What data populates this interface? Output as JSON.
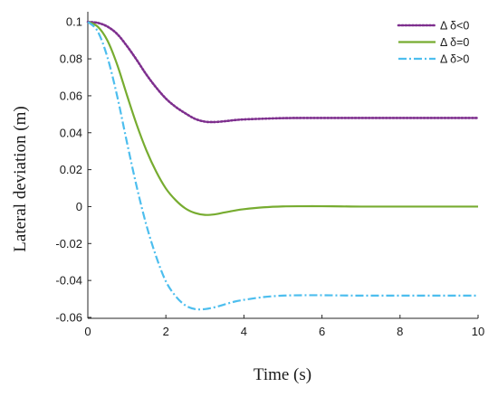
{
  "chart_data": {
    "type": "line",
    "title": "",
    "xlabel": "Time (s)",
    "ylabel": "Lateral deviation (m)",
    "xlim": [
      0,
      10
    ],
    "ylim": [
      -0.06,
      0.1
    ],
    "xticks": [
      0,
      2,
      4,
      6,
      8,
      10
    ],
    "xtick_labels": [
      "0",
      "2",
      "4",
      "6",
      "8",
      "10"
    ],
    "yticks": [
      0.1,
      0.08,
      0.06,
      0.04,
      0.02,
      0,
      -0.02,
      -0.04,
      -0.06
    ],
    "ytick_labels": [
      "0.1",
      "0.08",
      "0.06",
      "0.04",
      "0.02",
      "0",
      "-0.02",
      "-0.04",
      "-0.06"
    ],
    "grid": false,
    "legend_position": "top-right",
    "series": [
      {
        "name": "Δ δ<0",
        "color": "#7e2f8e",
        "line_style": "dotted",
        "x": [
          0,
          0.25,
          0.5,
          0.75,
          1,
          1.25,
          1.5,
          1.75,
          2,
          2.25,
          2.5,
          2.75,
          3,
          3.25,
          3.5,
          3.75,
          4,
          4.5,
          5,
          5.5,
          6,
          6.5,
          7,
          7.5,
          8,
          8.5,
          9,
          9.5,
          10
        ],
        "y": [
          0.1,
          0.0995,
          0.0975,
          0.0935,
          0.087,
          0.0795,
          0.0715,
          0.0645,
          0.0585,
          0.054,
          0.0505,
          0.0475,
          0.046,
          0.0458,
          0.0462,
          0.0468,
          0.0472,
          0.0476,
          0.0479,
          0.048,
          0.048,
          0.048,
          0.048,
          0.048,
          0.048,
          0.048,
          0.048,
          0.048,
          0.048
        ]
      },
      {
        "name": "Δ δ=0",
        "color": "#77ac30",
        "line_style": "solid",
        "x": [
          0,
          0.25,
          0.5,
          0.75,
          1,
          1.25,
          1.5,
          1.75,
          2,
          2.25,
          2.5,
          2.75,
          3,
          3.25,
          3.5,
          3.75,
          4,
          4.5,
          5,
          5.5,
          6,
          6.5,
          7,
          7.5,
          8,
          8.5,
          9,
          9.5,
          10
        ],
        "y": [
          0.1,
          0.0975,
          0.09,
          0.077,
          0.0605,
          0.0445,
          0.0305,
          0.019,
          0.0098,
          0.0035,
          -0.001,
          -0.0035,
          -0.0045,
          -0.0042,
          -0.0032,
          -0.0022,
          -0.0014,
          -0.0004,
          0.0001,
          0.0002,
          0.0002,
          0.0001,
          0.0,
          0.0,
          0.0,
          0.0,
          0.0,
          0.0,
          0.0
        ]
      },
      {
        "name": "Δ δ>0",
        "color": "#4dbeee",
        "line_style": "dashdot",
        "x": [
          0,
          0.25,
          0.5,
          0.75,
          1,
          1.25,
          1.5,
          1.75,
          2,
          2.25,
          2.5,
          2.75,
          3,
          3.25,
          3.5,
          3.75,
          4,
          4.5,
          5,
          5.5,
          6,
          6.5,
          7,
          7.5,
          8,
          8.5,
          9,
          9.5,
          10
        ],
        "y": [
          0.1,
          0.095,
          0.081,
          0.06,
          0.035,
          0.011,
          -0.01,
          -0.027,
          -0.0405,
          -0.0485,
          -0.0535,
          -0.0555,
          -0.0555,
          -0.0545,
          -0.053,
          -0.0515,
          -0.0505,
          -0.049,
          -0.0482,
          -0.048,
          -0.048,
          -0.0481,
          -0.0482,
          -0.0482,
          -0.0482,
          -0.0482,
          -0.0482,
          -0.0482,
          -0.0482
        ]
      }
    ]
  }
}
